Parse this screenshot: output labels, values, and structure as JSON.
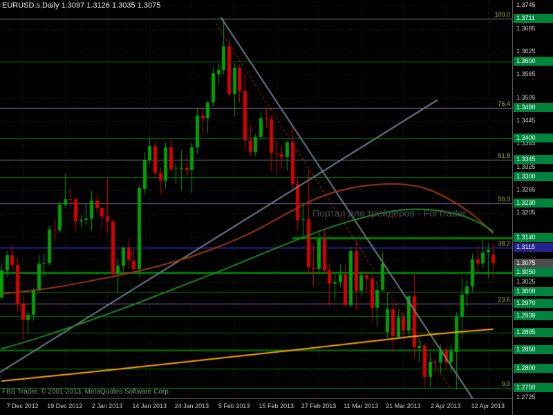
{
  "header": {
    "symbol_info": "EURUSD.s,Daily  1.3097 1.3126 1.3035 1.3075"
  },
  "watermark": {
    "text": "Портал для трейдеров - ForTrader"
  },
  "footer": {
    "copyright": "FBS Trader, © 2001-2013, MetaQuotes Software Corp."
  },
  "colors": {
    "background": "#000000",
    "grid": "#2b372b",
    "bull": "#00A000",
    "bear": "#D60000",
    "axis_text": "#cfcfcf",
    "fib_text": "#b9b91c",
    "level_green": "#007C00",
    "box_green": "#00843D"
  },
  "chart_data": {
    "type": "candlestick",
    "title": "EURUSD.s, Daily",
    "symbol": "EURUSD.s",
    "timeframe": "Daily",
    "current_bar": {
      "open": 1.3097,
      "high": 1.3126,
      "low": 1.3035,
      "close": 1.3075
    },
    "price_axis": {
      "min": 1.2725,
      "max": 1.3745,
      "step": 0.006,
      "labels": [
        "1.3745",
        "1.3685",
        "1.3625",
        "1.3565",
        "1.3505",
        "1.3445",
        "1.3385",
        "1.3325",
        "1.3265",
        "1.3205",
        "1.3025",
        "1.2725"
      ]
    },
    "x_labels": [
      {
        "text": "7 Dec 2012",
        "bar": 4
      },
      {
        "text": "19 Dec 2012",
        "bar": 12
      },
      {
        "text": "2 Jan 2013",
        "bar": 20
      },
      {
        "text": "14 Jan 2013",
        "bar": 28
      },
      {
        "text": "24 Jan 2013",
        "bar": 36
      },
      {
        "text": "5 Feb 2013",
        "bar": 44
      },
      {
        "text": "15 Feb 2013",
        "bar": 52
      },
      {
        "text": "27 Feb 2013",
        "bar": 60
      },
      {
        "text": "11 Mar 2013",
        "bar": 68
      },
      {
        "text": "21 Mar 2013",
        "bar": 76
      },
      {
        "text": "2 Apr 2013",
        "bar": 84
      },
      {
        "text": "12 Apr 2013",
        "bar": 92
      }
    ],
    "candles": [
      [
        1.2986,
        1.3076,
        1.2983,
        1.3056
      ],
      [
        1.3056,
        1.3108,
        1.3041,
        1.3096
      ],
      [
        1.3096,
        1.3127,
        1.3057,
        1.307
      ],
      [
        1.307,
        1.3089,
        1.295,
        1.2968
      ],
      [
        1.2968,
        1.2996,
        1.2876,
        1.2926
      ],
      [
        1.2926,
        1.2952,
        1.2896,
        1.2941
      ],
      [
        1.2941,
        1.3013,
        1.2926,
        1.3004
      ],
      [
        1.3004,
        1.3098,
        1.2998,
        1.3075
      ],
      [
        1.3075,
        1.3102,
        1.304,
        1.3076
      ],
      [
        1.3076,
        1.3173,
        1.307,
        1.3163
      ],
      [
        1.3163,
        1.3191,
        1.313,
        1.3161
      ],
      [
        1.3161,
        1.3238,
        1.3155,
        1.3227
      ],
      [
        1.3227,
        1.3308,
        1.322,
        1.3242
      ],
      [
        1.3242,
        1.3273,
        1.3221,
        1.3241
      ],
      [
        1.3241,
        1.3246,
        1.3158,
        1.3183
      ],
      [
        1.3183,
        1.3202,
        1.317,
        1.3187
      ],
      [
        1.3187,
        1.3232,
        1.3175,
        1.3191
      ],
      [
        1.3191,
        1.3264,
        1.316,
        1.3238
      ],
      [
        1.3238,
        1.3255,
        1.3205,
        1.3218
      ],
      [
        1.3218,
        1.3222,
        1.3166,
        1.3197
      ],
      [
        1.3197,
        1.3299,
        1.3154,
        1.3184
      ],
      [
        1.3184,
        1.3188,
        1.3037,
        1.3047
      ],
      [
        1.3047,
        1.3088,
        1.2998,
        1.3069
      ],
      [
        1.3069,
        1.312,
        1.3054,
        1.3115
      ],
      [
        1.3115,
        1.314,
        1.306,
        1.3082
      ],
      [
        1.3082,
        1.3112,
        1.3055,
        1.306
      ],
      [
        1.306,
        1.328,
        1.304,
        1.327
      ],
      [
        1.327,
        1.3366,
        1.3255,
        1.3343
      ],
      [
        1.3343,
        1.3404,
        1.3336,
        1.3381
      ],
      [
        1.3381,
        1.3393,
        1.3305,
        1.331
      ],
      [
        1.331,
        1.3325,
        1.3255,
        1.329
      ],
      [
        1.329,
        1.339,
        1.327,
        1.3376
      ],
      [
        1.3376,
        1.3404,
        1.3313,
        1.3318
      ],
      [
        1.3318,
        1.3333,
        1.3281,
        1.332
      ],
      [
        1.332,
        1.337,
        1.3265,
        1.3322
      ],
      [
        1.3322,
        1.3358,
        1.3303,
        1.3317
      ],
      [
        1.3317,
        1.339,
        1.326,
        1.3376
      ],
      [
        1.3376,
        1.3479,
        1.336,
        1.3459
      ],
      [
        1.3459,
        1.348,
        1.3413,
        1.3452
      ],
      [
        1.3452,
        1.3497,
        1.3414,
        1.3493
      ],
      [
        1.3493,
        1.3588,
        1.3482,
        1.3569
      ],
      [
        1.3569,
        1.3597,
        1.3541,
        1.3579
      ],
      [
        1.3579,
        1.3711,
        1.3567,
        1.364
      ],
      [
        1.364,
        1.3659,
        1.3509,
        1.3515
      ],
      [
        1.3515,
        1.3597,
        1.3458,
        1.3583
      ],
      [
        1.3583,
        1.3593,
        1.3494,
        1.3524
      ],
      [
        1.3524,
        1.3568,
        1.337,
        1.3395
      ],
      [
        1.3395,
        1.3433,
        1.3353,
        1.3365
      ],
      [
        1.3365,
        1.3412,
        1.3355,
        1.3404
      ],
      [
        1.3404,
        1.3471,
        1.3398,
        1.3452
      ],
      [
        1.3452,
        1.348,
        1.3427,
        1.345
      ],
      [
        1.345,
        1.346,
        1.3315,
        1.3361
      ],
      [
        1.3361,
        1.3397,
        1.3305,
        1.3359
      ],
      [
        1.3359,
        1.338,
        1.3322,
        1.3352
      ],
      [
        1.3352,
        1.3394,
        1.3318,
        1.339
      ],
      [
        1.339,
        1.3434,
        1.327,
        1.3282
      ],
      [
        1.3282,
        1.3297,
        1.316,
        1.3188
      ],
      [
        1.3188,
        1.3227,
        1.3144,
        1.3189
      ],
      [
        1.3189,
        1.3319,
        1.3047,
        1.3064
      ],
      [
        1.3064,
        1.3123,
        1.3017,
        1.3061
      ],
      [
        1.3061,
        1.3156,
        1.3054,
        1.3138
      ],
      [
        1.3138,
        1.316,
        1.3053,
        1.3057
      ],
      [
        1.3057,
        1.3075,
        1.2966,
        1.3023
      ],
      [
        1.3023,
        1.3047,
        1.2981,
        1.3026
      ],
      [
        1.3026,
        1.3075,
        1.3013,
        1.3046
      ],
      [
        1.3046,
        1.3073,
        1.2964,
        1.2966
      ],
      [
        1.2966,
        1.3119,
        1.2961,
        1.3107
      ],
      [
        1.3107,
        1.3134,
        1.2955,
        1.3003
      ],
      [
        1.3003,
        1.3056,
        1.2991,
        1.3043
      ],
      [
        1.3043,
        1.3055,
        1.2998,
        1.3034
      ],
      [
        1.3034,
        1.305,
        1.2923,
        1.2959
      ],
      [
        1.2959,
        1.3031,
        1.2911,
        1.3006
      ],
      [
        1.3006,
        1.3106,
        1.3003,
        1.3075
      ],
      [
        1.2895,
        1.2998,
        1.2882,
        1.2955
      ],
      [
        1.2955,
        1.2972,
        1.2843,
        1.2884
      ],
      [
        1.2884,
        1.2954,
        1.2879,
        1.2934
      ],
      [
        1.2934,
        1.2948,
        1.2878,
        1.2899
      ],
      [
        1.2899,
        1.2993,
        1.2889,
        1.2989
      ],
      [
        1.2989,
        1.3048,
        1.283,
        1.2855
      ],
      [
        1.2855,
        1.2879,
        1.2819,
        1.286
      ],
      [
        1.286,
        1.2868,
        1.275,
        1.2779
      ],
      [
        1.2779,
        1.2844,
        1.2754,
        1.2818
      ],
      [
        1.2818,
        1.2828,
        1.2792,
        1.2817
      ],
      [
        1.2817,
        1.2866,
        1.2788,
        1.2847
      ],
      [
        1.2847,
        1.2861,
        1.28,
        1.2817
      ],
      [
        1.2817,
        1.2866,
        1.2791,
        1.2845
      ],
      [
        1.2845,
        1.2948,
        1.2746,
        1.2936
      ],
      [
        1.2936,
        1.3039,
        1.288,
        1.2994
      ],
      [
        1.2994,
        1.3032,
        1.2965,
        1.3014
      ],
      [
        1.3014,
        1.3102,
        1.3002,
        1.3085
      ],
      [
        1.3085,
        1.3121,
        1.3053,
        1.3074
      ],
      [
        1.3074,
        1.3138,
        1.3064,
        1.3103
      ],
      [
        1.3103,
        1.3128,
        1.3036,
        1.311
      ],
      [
        1.3097,
        1.3126,
        1.3035,
        1.3075
      ]
    ],
    "levels": [
      {
        "price": 1.3711,
        "box_label": "1.3711",
        "fib_label": "100.0",
        "line_color": "#6f7f7f",
        "line_width": 1,
        "box_color": "#00843D"
      },
      {
        "price": 1.36,
        "box_label": "1.3600",
        "line_color": "#007C00",
        "line_width": 1,
        "box_color": "#00843D"
      },
      {
        "price": 1.348,
        "box_label": "1.3480",
        "fib_label": "76.4",
        "line_color": "#8a6fae",
        "line_width": 1,
        "box_color": "#00843D"
      },
      {
        "price": 1.34,
        "box_label": "1.3400",
        "line_color": "#007C00",
        "line_width": 1,
        "box_color": "#00843D"
      },
      {
        "price": 1.3345,
        "box_label": "1.3345",
        "fib_label": "61.8",
        "line_color": "#6f7f7f",
        "line_width": 1,
        "box_color": "#00843D"
      },
      {
        "price": 1.33,
        "box_label": "1.3300",
        "line_color": "#007C00",
        "line_width": 1,
        "box_color": "#00843D"
      },
      {
        "price": 1.323,
        "box_label": "1.3230",
        "fib_label": "50.0",
        "line_color": "#8a6fae",
        "line_width": 1,
        "box_color": "#00843D"
      },
      {
        "price": 1.314,
        "box_label": "1.3140",
        "line_color": "#007C00",
        "line_width": 3,
        "from_bar": 55,
        "box_color": "#00843D"
      },
      {
        "price": 1.3115,
        "box_label": "1.3115",
        "fib_label": "38.2",
        "line_color": "#24248f",
        "line_width": 2,
        "box_color": "#24248f"
      },
      {
        "price": 1.3075,
        "box_label": "1.3075",
        "box_color": "#4d4d4d",
        "current_price": true
      },
      {
        "price": 1.305,
        "box_label": "1.3050",
        "line_color": "#007C00",
        "line_width": 3,
        "box_color": "#00843D"
      },
      {
        "price": 1.3,
        "box_label": "1.3000",
        "line_color": "#007C00",
        "line_width": 1,
        "box_color": "#00843D"
      },
      {
        "price": 1.297,
        "box_label": "1.2970",
        "fib_label": "23.6",
        "line_color": "#8a6fae",
        "line_width": 1,
        "box_color": "#00843D"
      },
      {
        "price": 1.2938,
        "box_label": "1.2938",
        "line_color": "#007C00",
        "line_width": 1,
        "box_color": "#00843D"
      },
      {
        "price": 1.2895,
        "box_label": "1.2895",
        "line_color": "#007C00",
        "line_width": 1,
        "box_color": "#00843D"
      },
      {
        "price": 1.285,
        "box_label": "1.2850",
        "line_color": "#007C00",
        "line_width": 2,
        "box_color": "#00843D"
      },
      {
        "price": 1.28,
        "box_label": "1.2800",
        "line_color": "#007C00",
        "line_width": 1,
        "box_color": "#00843D"
      },
      {
        "price": 1.275,
        "box_label": "1.2750",
        "fib_label": "0.0",
        "line_color": "#007C00",
        "line_width": 1,
        "box_color": "#00843D"
      }
    ],
    "trendlines": [
      {
        "name": "ascending-support",
        "color": "#6f7f8f",
        "width": 2,
        "dash": null,
        "from": [
          -1,
          1.2785
        ],
        "to": [
          82.5,
          1.35
        ]
      },
      {
        "name": "descending-resistance",
        "color": "#6f7f8f",
        "width": 2,
        "dash": null,
        "from": [
          41.5,
          1.3715
        ],
        "to": [
          89.5,
          1.2715
        ]
      },
      {
        "name": "descending-channel-dashed",
        "color": "#c62828",
        "width": 1,
        "dash": [
          4,
          3
        ],
        "from": [
          40.5,
          1.37
        ],
        "to": [
          85,
          1.2745
        ]
      }
    ],
    "moving_averages": [
      {
        "name": "ma-slow-brown",
        "color": "#9c3a12",
        "width": 2,
        "points": [
          [
            0,
            1.2995
          ],
          [
            6,
            1.3004
          ],
          [
            12,
            1.3016
          ],
          [
            18,
            1.3032
          ],
          [
            24,
            1.3048
          ],
          [
            30,
            1.3068
          ],
          [
            36,
            1.3092
          ],
          [
            42,
            1.3122
          ],
          [
            48,
            1.3158
          ],
          [
            54,
            1.3205
          ],
          [
            60,
            1.3248
          ],
          [
            66,
            1.3272
          ],
          [
            72,
            1.3282
          ],
          [
            76,
            1.3281
          ],
          [
            80,
            1.3272
          ],
          [
            84,
            1.3248
          ],
          [
            88,
            1.3214
          ],
          [
            91,
            1.318
          ],
          [
            93,
            1.3152
          ]
        ]
      },
      {
        "name": "ma-mid-green",
        "color": "#1e8b1e",
        "width": 2,
        "points": [
          [
            0,
            1.2852
          ],
          [
            6,
            1.2876
          ],
          [
            12,
            1.2903
          ],
          [
            18,
            1.2932
          ],
          [
            24,
            1.2962
          ],
          [
            30,
            1.2994
          ],
          [
            36,
            1.3026
          ],
          [
            42,
            1.3058
          ],
          [
            48,
            1.3092
          ],
          [
            54,
            1.3126
          ],
          [
            60,
            1.3158
          ],
          [
            66,
            1.3186
          ],
          [
            72,
            1.3206
          ],
          [
            76,
            1.3215
          ],
          [
            80,
            1.3216
          ],
          [
            84,
            1.321
          ],
          [
            88,
            1.3196
          ],
          [
            91,
            1.3176
          ],
          [
            93,
            1.3158
          ]
        ]
      },
      {
        "name": "ma-long-orange",
        "color": "#FFA500",
        "width": 2,
        "points": [
          [
            0,
            1.2768
          ],
          [
            12,
            1.2785
          ],
          [
            24,
            1.2802
          ],
          [
            36,
            1.282
          ],
          [
            48,
            1.2838
          ],
          [
            60,
            1.2856
          ],
          [
            70,
            1.2872
          ],
          [
            80,
            1.2888
          ],
          [
            88,
            1.2898
          ],
          [
            93,
            1.2903
          ]
        ]
      }
    ]
  }
}
